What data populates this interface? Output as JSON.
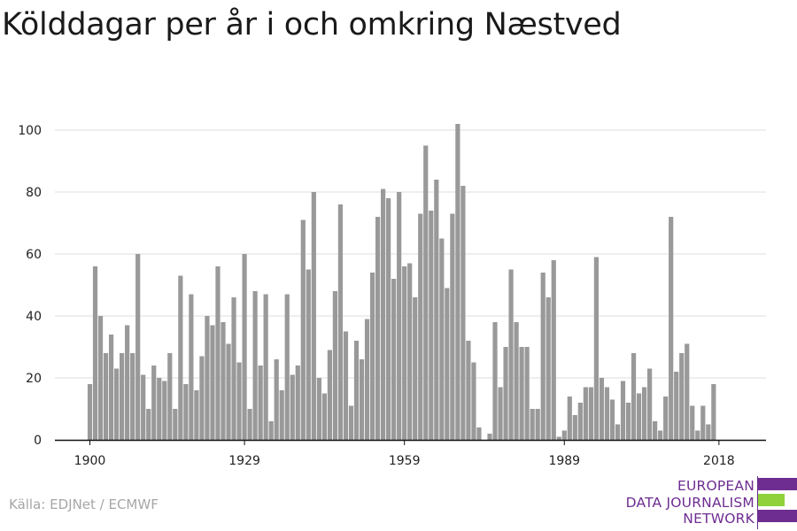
{
  "title": "Kölddagar per år i och omkring Næstved",
  "source": "Källa: EDJNet / ECMWF",
  "logo": {
    "lines": [
      "EUROPEAN",
      "DATA JOURNALISM",
      "NETWORK"
    ],
    "colors": {
      "purple": "#6e2d91",
      "green": "#8fd13a"
    }
  },
  "colors": {
    "bar": "#999999",
    "grid": "#dddddd",
    "axis": "#111111"
  },
  "chart_data": {
    "type": "bar",
    "title": "Kölddagar per år i och omkring Næstved",
    "xlabel": "",
    "ylabel": "",
    "x": [
      1900,
      1901,
      1902,
      1903,
      1904,
      1905,
      1906,
      1907,
      1908,
      1909,
      1910,
      1911,
      1912,
      1913,
      1914,
      1915,
      1916,
      1917,
      1918,
      1919,
      1920,
      1921,
      1922,
      1923,
      1924,
      1925,
      1926,
      1927,
      1928,
      1929,
      1930,
      1931,
      1932,
      1933,
      1934,
      1935,
      1936,
      1937,
      1938,
      1939,
      1940,
      1941,
      1942,
      1943,
      1944,
      1945,
      1946,
      1947,
      1948,
      1949,
      1950,
      1951,
      1952,
      1953,
      1954,
      1955,
      1956,
      1957,
      1958,
      1959,
      1960,
      1961,
      1962,
      1963,
      1964,
      1965,
      1966,
      1967,
      1968,
      1969,
      1970,
      1971,
      1972,
      1973,
      1974,
      1975,
      1976,
      1977,
      1978,
      1979,
      1980,
      1981,
      1982,
      1983,
      1984,
      1985,
      1986,
      1987,
      1988,
      1989,
      1990,
      1991,
      1992,
      1993,
      1994,
      1995,
      1996,
      1997,
      1998,
      1999,
      2000,
      2001,
      2002,
      2003,
      2004,
      2005,
      2006,
      2007,
      2008,
      2009,
      2010,
      2011,
      2012,
      2013,
      2014,
      2015,
      2016,
      2017,
      2018
    ],
    "values": [
      18,
      56,
      40,
      28,
      34,
      23,
      28,
      37,
      28,
      60,
      21,
      10,
      24,
      20,
      19,
      28,
      10,
      53,
      18,
      47,
      16,
      27,
      40,
      37,
      56,
      38,
      31,
      46,
      25,
      60,
      10,
      48,
      24,
      47,
      6,
      26,
      16,
      47,
      21,
      24,
      71,
      55,
      80,
      20,
      15,
      29,
      48,
      76,
      35,
      11,
      32,
      26,
      39,
      54,
      72,
      81,
      78,
      52,
      80,
      56,
      57,
      46,
      73,
      95,
      74,
      84,
      65,
      49,
      73,
      102,
      82,
      32,
      25,
      4,
      0,
      2,
      38,
      17,
      30,
      55,
      38,
      30,
      30,
      10,
      10,
      54,
      46,
      58,
      1,
      3,
      14,
      8,
      12,
      17,
      17,
      59,
      20,
      17,
      13,
      5,
      19,
      12,
      28,
      15,
      17,
      23,
      6,
      3,
      14,
      72,
      22,
      28,
      31,
      11,
      3,
      11,
      5,
      18,
      0
    ],
    "xticks": [
      "1900",
      "1929",
      "1959",
      "1989",
      "2018"
    ],
    "xtick_years": [
      1900,
      1929,
      1959,
      1989,
      2018
    ],
    "yticks": [
      "0",
      "20",
      "40",
      "60",
      "80",
      "100"
    ],
    "ylim": [
      0,
      103
    ],
    "grid": true,
    "legend": "none"
  }
}
